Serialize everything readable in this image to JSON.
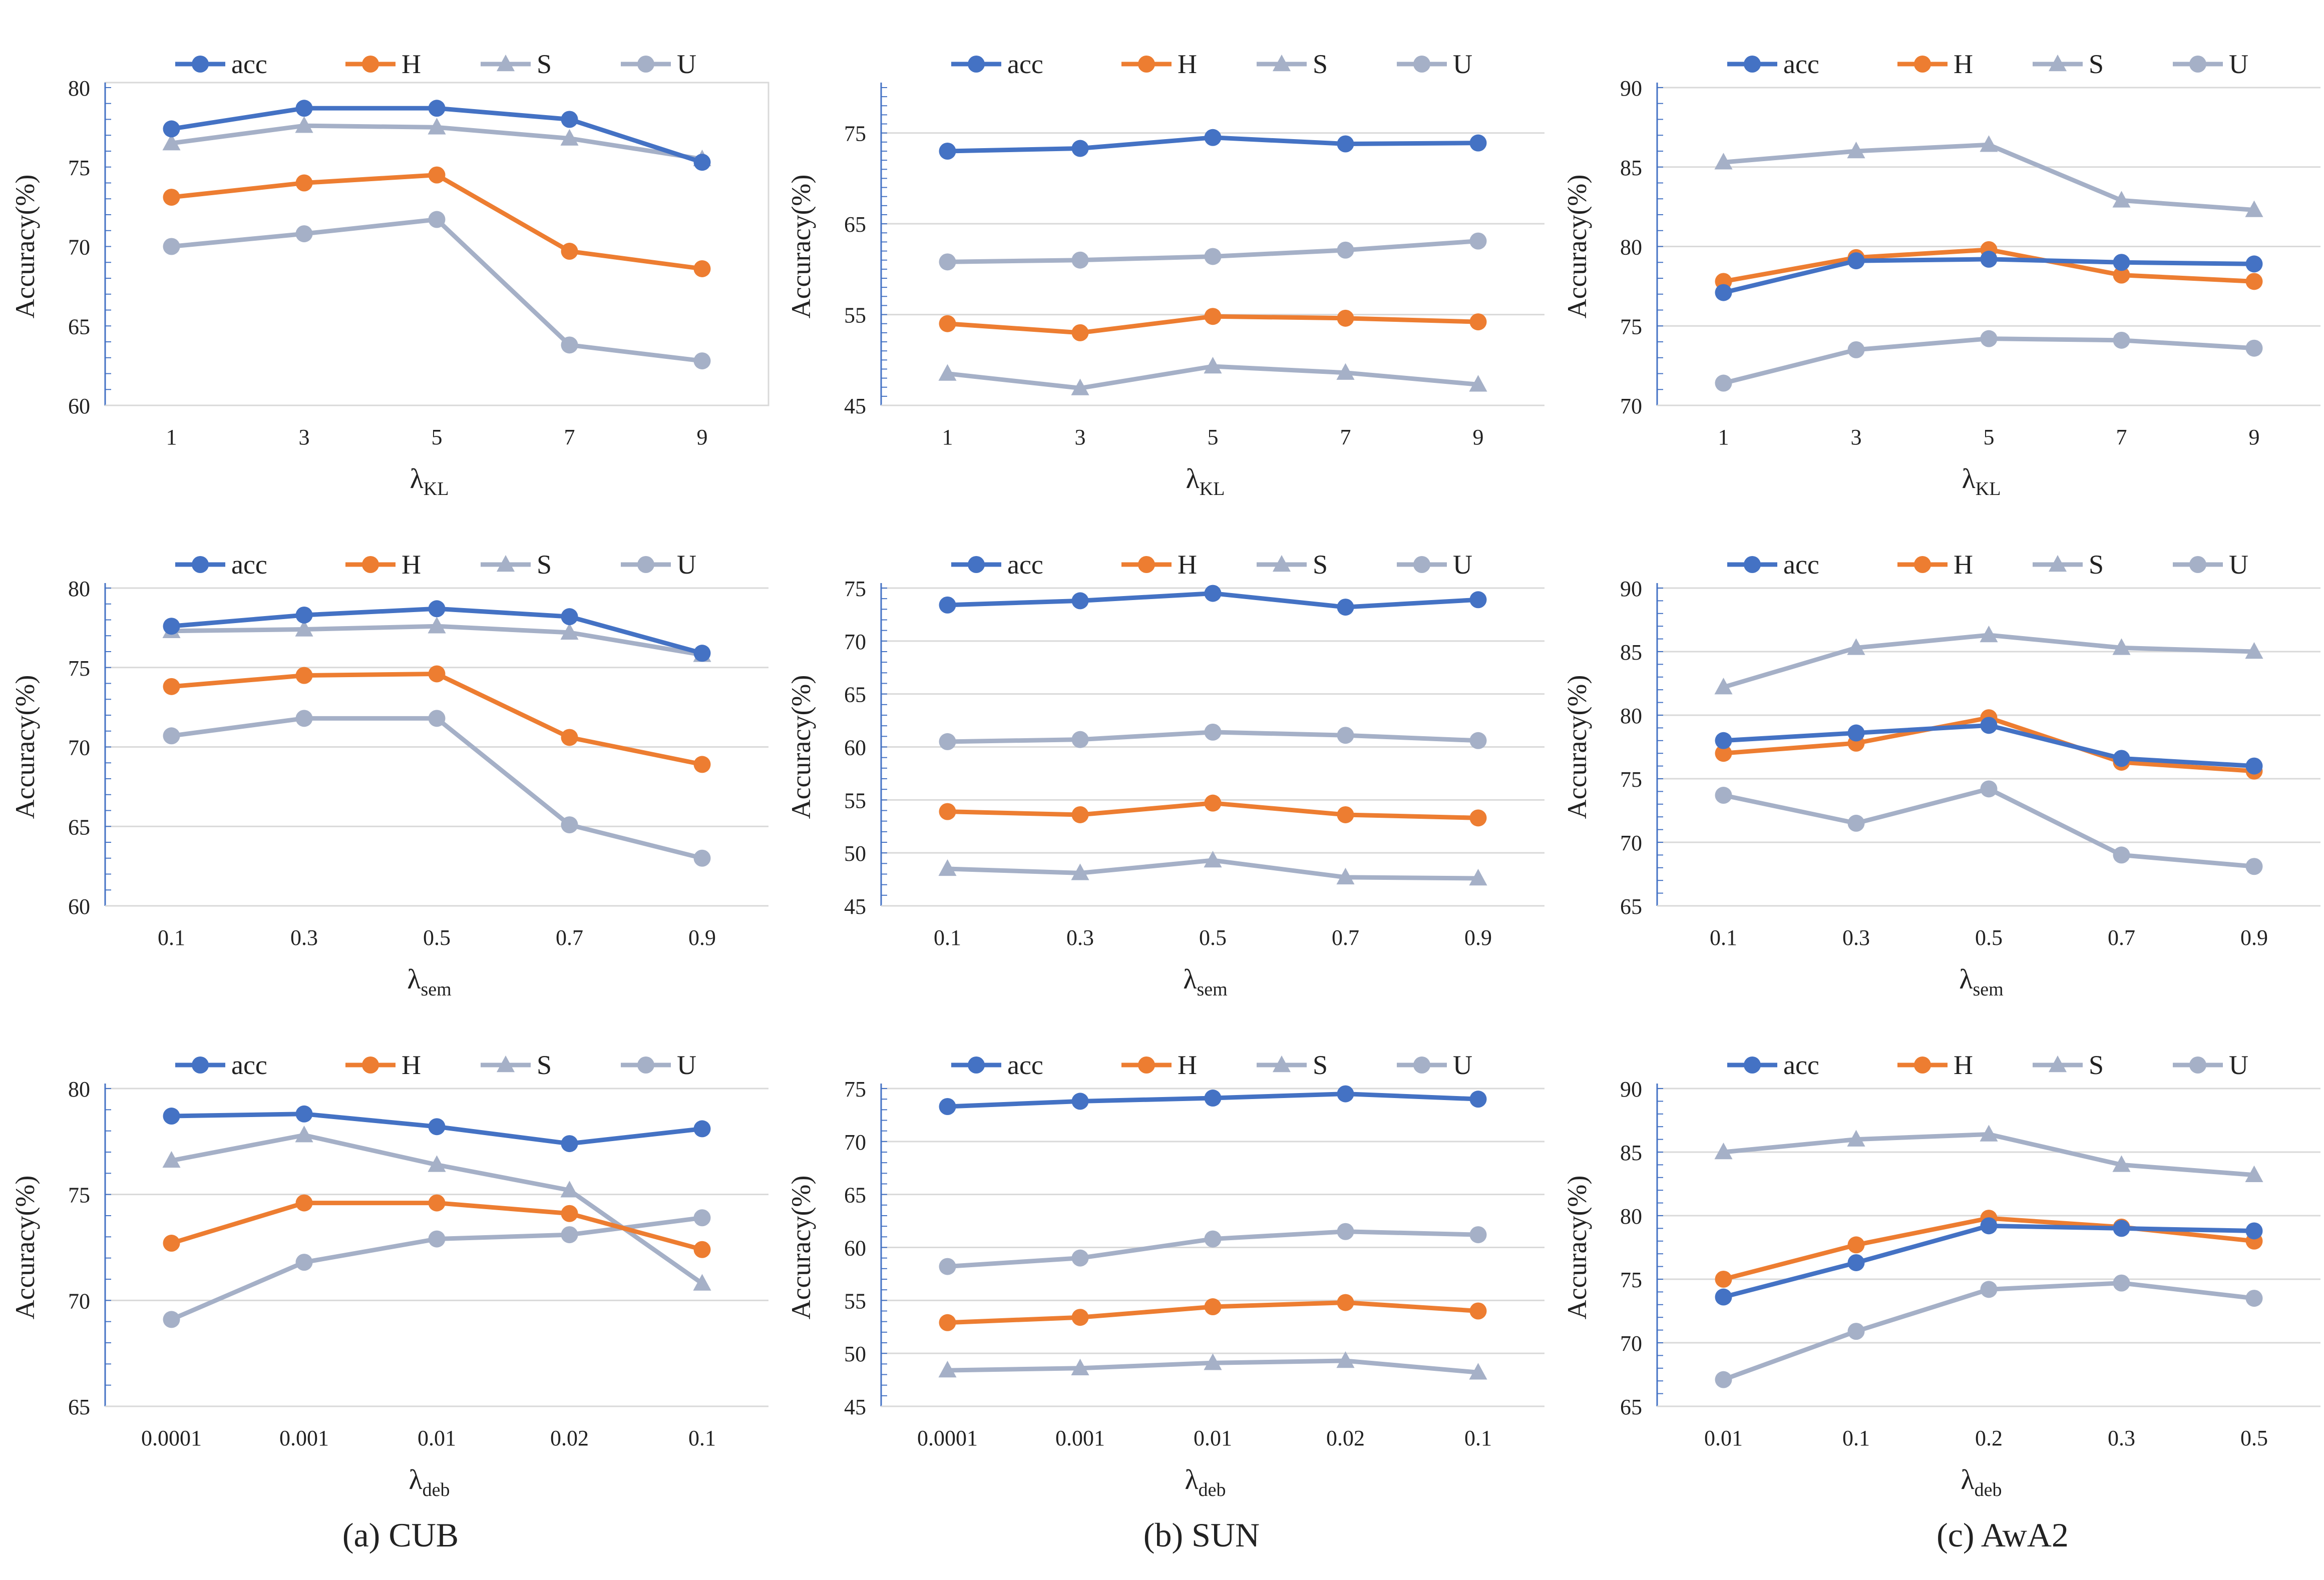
{
  "colors": {
    "acc": "#4472C4",
    "H": "#ED7D31",
    "S": "#A5B0C7",
    "U": "#A5B0C7",
    "grid": "#D9D9D9",
    "axis": "#4472C4",
    "text": "#222222"
  },
  "captions": [
    "(a)  CUB",
    "(b)  SUN",
    "(c)  AwA2"
  ],
  "chart_data": [
    {
      "id": "cub-kl",
      "type": "line",
      "title": "",
      "ylabel": "Accuracy(%)",
      "xlabel": {
        "base": "λ",
        "sub": "KL"
      },
      "categories": [
        "1",
        "3",
        "5",
        "7",
        "9"
      ],
      "ylim": [
        60,
        80
      ],
      "yticks": [
        60,
        65,
        70,
        75,
        80
      ],
      "grid": false,
      "series": [
        {
          "name": "acc",
          "values": [
            77.4,
            78.7,
            78.7,
            78.0,
            75.3
          ]
        },
        {
          "name": "H",
          "values": [
            73.1,
            74.0,
            74.5,
            69.7,
            68.6
          ]
        },
        {
          "name": "S",
          "values": [
            76.5,
            77.6,
            77.5,
            76.8,
            75.5
          ]
        },
        {
          "name": "U",
          "values": [
            70.0,
            70.8,
            71.7,
            63.8,
            62.8
          ]
        }
      ]
    },
    {
      "id": "sun-kl",
      "type": "line",
      "title": "",
      "ylabel": "Accuracy(%)",
      "xlabel": {
        "base": "λ",
        "sub": "KL"
      },
      "categories": [
        "1",
        "3",
        "5",
        "7",
        "9"
      ],
      "ylim": [
        45,
        80
      ],
      "yticks": [
        45,
        55,
        65,
        75
      ],
      "grid": true,
      "series": [
        {
          "name": "acc",
          "values": [
            73.0,
            73.3,
            74.5,
            73.8,
            73.9
          ]
        },
        {
          "name": "H",
          "values": [
            54.0,
            53.0,
            54.8,
            54.6,
            54.2
          ]
        },
        {
          "name": "S",
          "values": [
            48.5,
            46.9,
            49.3,
            48.6,
            47.3
          ]
        },
        {
          "name": "U",
          "values": [
            60.8,
            61.0,
            61.4,
            62.1,
            63.1
          ]
        }
      ]
    },
    {
      "id": "awa2-kl",
      "type": "line",
      "title": "",
      "ylabel": "Accuracy(%)",
      "xlabel": {
        "base": "λ",
        "sub": "KL"
      },
      "categories": [
        "1",
        "3",
        "5",
        "7",
        "9"
      ],
      "ylim": [
        70,
        90
      ],
      "yticks": [
        70,
        75,
        80,
        85,
        90
      ],
      "grid": true,
      "series": [
        {
          "name": "acc",
          "values": [
            77.1,
            79.1,
            79.2,
            79.0,
            78.9
          ]
        },
        {
          "name": "H",
          "values": [
            77.8,
            79.3,
            79.8,
            78.2,
            77.8
          ]
        },
        {
          "name": "S",
          "values": [
            85.3,
            86.0,
            86.4,
            82.9,
            82.3
          ]
        },
        {
          "name": "U",
          "values": [
            71.4,
            73.5,
            74.2,
            74.1,
            73.6
          ]
        }
      ]
    },
    {
      "id": "cub-sem",
      "type": "line",
      "title": "",
      "ylabel": "Accuracy(%)",
      "xlabel": {
        "base": "λ",
        "sub": "sem"
      },
      "categories": [
        "0.1",
        "0.3",
        "0.5",
        "0.7",
        "0.9"
      ],
      "ylim": [
        60,
        80
      ],
      "yticks": [
        60,
        65,
        70,
        75,
        80
      ],
      "grid": true,
      "series": [
        {
          "name": "acc",
          "values": [
            77.6,
            78.3,
            78.7,
            78.2,
            75.9
          ]
        },
        {
          "name": "H",
          "values": [
            73.8,
            74.5,
            74.6,
            70.6,
            68.9
          ]
        },
        {
          "name": "S",
          "values": [
            77.3,
            77.4,
            77.6,
            77.2,
            75.8
          ]
        },
        {
          "name": "U",
          "values": [
            70.7,
            71.8,
            71.8,
            65.1,
            63.0
          ]
        }
      ]
    },
    {
      "id": "sun-sem",
      "type": "line",
      "title": "",
      "ylabel": "Accuracy(%)",
      "xlabel": {
        "base": "λ",
        "sub": "sem"
      },
      "categories": [
        "0.1",
        "0.3",
        "0.5",
        "0.7",
        "0.9"
      ],
      "ylim": [
        45,
        75
      ],
      "yticks": [
        45,
        50,
        55,
        60,
        65,
        70,
        75
      ],
      "grid": true,
      "series": [
        {
          "name": "acc",
          "values": [
            73.4,
            73.8,
            74.5,
            73.2,
            73.9
          ]
        },
        {
          "name": "H",
          "values": [
            53.9,
            53.6,
            54.7,
            53.6,
            53.3
          ]
        },
        {
          "name": "S",
          "values": [
            48.5,
            48.1,
            49.3,
            47.7,
            47.6
          ]
        },
        {
          "name": "U",
          "values": [
            60.5,
            60.7,
            61.4,
            61.1,
            60.6
          ]
        }
      ]
    },
    {
      "id": "awa2-sem",
      "type": "line",
      "title": "",
      "ylabel": "Accuracy(%)",
      "xlabel": {
        "base": "λ",
        "sub": "sem"
      },
      "categories": [
        "0.1",
        "0.3",
        "0.5",
        "0.7",
        "0.9"
      ],
      "ylim": [
        65,
        90
      ],
      "yticks": [
        65,
        70,
        75,
        80,
        85,
        90
      ],
      "grid": true,
      "series": [
        {
          "name": "acc",
          "values": [
            78.0,
            78.6,
            79.2,
            76.6,
            76.0
          ]
        },
        {
          "name": "H",
          "values": [
            77.0,
            77.8,
            79.8,
            76.3,
            75.6
          ]
        },
        {
          "name": "S",
          "values": [
            82.2,
            85.3,
            86.3,
            85.3,
            85.0
          ]
        },
        {
          "name": "U",
          "values": [
            73.7,
            71.5,
            74.2,
            69.0,
            68.1
          ]
        }
      ]
    },
    {
      "id": "cub-deb",
      "type": "line",
      "title": "",
      "ylabel": "Accuracy(%)",
      "xlabel": {
        "base": "λ",
        "sub": "deb"
      },
      "categories": [
        "0.0001",
        "0.001",
        "0.01",
        "0.02",
        "0.1"
      ],
      "ylim": [
        65,
        80
      ],
      "yticks": [
        65,
        70,
        75,
        80
      ],
      "grid": true,
      "series": [
        {
          "name": "acc",
          "values": [
            78.7,
            78.8,
            78.2,
            77.4,
            78.1
          ]
        },
        {
          "name": "H",
          "values": [
            72.7,
            74.6,
            74.6,
            74.1,
            72.4
          ]
        },
        {
          "name": "S",
          "values": [
            76.6,
            77.8,
            76.4,
            75.2,
            70.8
          ]
        },
        {
          "name": "U",
          "values": [
            69.1,
            71.8,
            72.9,
            73.1,
            73.9
          ]
        }
      ]
    },
    {
      "id": "sun-deb",
      "type": "line",
      "title": "",
      "ylabel": "Accuracy(%)",
      "xlabel": {
        "base": "λ",
        "sub": "deb"
      },
      "categories": [
        "0.0001",
        "0.001",
        "0.01",
        "0.02",
        "0.1"
      ],
      "ylim": [
        45,
        75
      ],
      "yticks": [
        45,
        50,
        55,
        60,
        65,
        70,
        75
      ],
      "grid": true,
      "series": [
        {
          "name": "acc",
          "values": [
            73.3,
            73.8,
            74.1,
            74.5,
            74.0
          ]
        },
        {
          "name": "H",
          "values": [
            52.9,
            53.4,
            54.4,
            54.8,
            54.0
          ]
        },
        {
          "name": "S",
          "values": [
            48.4,
            48.6,
            49.1,
            49.3,
            48.2
          ]
        },
        {
          "name": "U",
          "values": [
            58.2,
            59.0,
            60.8,
            61.5,
            61.2
          ]
        }
      ]
    },
    {
      "id": "awa2-deb",
      "type": "line",
      "title": "",
      "ylabel": "Accuracy(%)",
      "xlabel": {
        "base": "λ",
        "sub": "deb"
      },
      "categories": [
        "0.01",
        "0.1",
        "0.2",
        "0.3",
        "0.5"
      ],
      "ylim": [
        65,
        90
      ],
      "yticks": [
        65,
        70,
        75,
        80,
        85,
        90
      ],
      "grid": true,
      "series": [
        {
          "name": "acc",
          "values": [
            73.6,
            76.3,
            79.2,
            79.0,
            78.8
          ]
        },
        {
          "name": "H",
          "values": [
            75.0,
            77.7,
            79.8,
            79.1,
            78.0
          ]
        },
        {
          "name": "S",
          "values": [
            85.0,
            86.0,
            86.4,
            84.0,
            83.2
          ]
        },
        {
          "name": "U",
          "values": [
            67.1,
            70.9,
            74.2,
            74.7,
            73.5
          ]
        }
      ]
    }
  ]
}
